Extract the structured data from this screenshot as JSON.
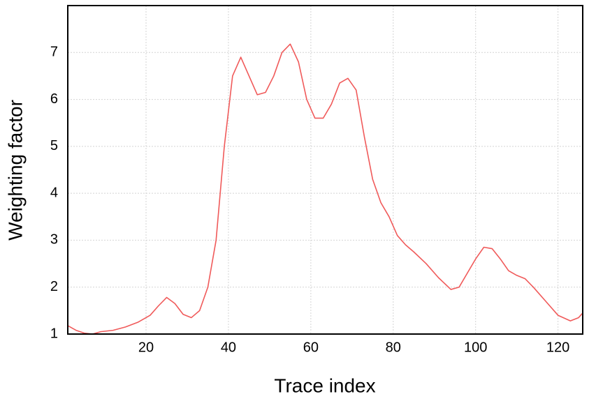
{
  "chart_data": {
    "type": "line",
    "x_label": "Trace index",
    "y_label": "Weighting factor",
    "x": [
      1,
      3,
      5,
      7,
      9,
      12,
      15,
      18,
      21,
      23,
      25,
      27,
      29,
      31,
      33,
      35,
      37,
      39,
      41,
      43,
      45,
      47,
      49,
      51,
      53,
      55,
      57,
      59,
      61,
      63,
      65,
      67,
      69,
      71,
      73,
      75,
      77,
      79,
      81,
      83,
      85,
      88,
      91,
      94,
      96,
      98,
      100,
      102,
      104,
      106,
      108,
      110,
      112,
      114,
      117,
      120,
      123,
      125,
      126
    ],
    "series": [
      {
        "name": "Weighting factor",
        "color": "#f05a5a",
        "values": [
          1.18,
          1.08,
          1.02,
          1.0,
          1.05,
          1.08,
          1.15,
          1.25,
          1.4,
          1.6,
          1.78,
          1.65,
          1.42,
          1.35,
          1.5,
          2.0,
          3.0,
          5.0,
          6.5,
          6.9,
          6.5,
          6.1,
          6.15,
          6.5,
          7.0,
          7.18,
          6.8,
          6.0,
          5.6,
          5.6,
          5.9,
          6.35,
          6.45,
          6.2,
          5.2,
          4.3,
          3.8,
          3.5,
          3.1,
          2.9,
          2.75,
          2.5,
          2.2,
          1.95,
          2.0,
          2.3,
          2.6,
          2.85,
          2.82,
          2.6,
          2.35,
          2.25,
          2.18,
          2.0,
          1.7,
          1.4,
          1.28,
          1.35,
          1.45
        ]
      }
    ],
    "xlim": [
      1,
      126
    ],
    "ylim": [
      1,
      8
    ],
    "xticks": [
      20,
      40,
      60,
      80,
      100,
      120
    ],
    "yticks": [
      1,
      2,
      3,
      4,
      5,
      6,
      7
    ],
    "grid": true
  }
}
